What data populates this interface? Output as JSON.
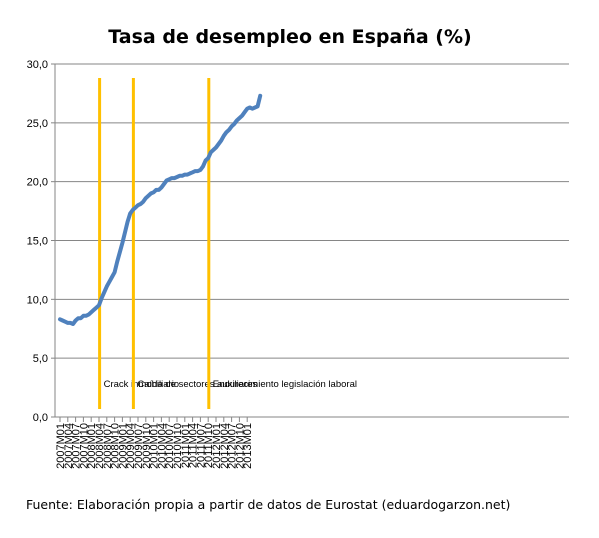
{
  "chart_data": {
    "type": "line",
    "title": "Tasa de desempleo en España (%)",
    "xlabel": "",
    "ylabel": "",
    "ylim": [
      0,
      30
    ],
    "yticks": [
      "0,0",
      "5,0",
      "10,0",
      "15,0",
      "20,0",
      "25,0",
      "30,0"
    ],
    "grid": "horizontal",
    "legend": "none",
    "line_color": "#4f81bd",
    "marker_color": "#ffc000",
    "x_labels": [
      "2007M01",
      "2007M04",
      "2007M07",
      "2007M10",
      "2008M01",
      "2008M04",
      "2008M07",
      "2008M10",
      "2009M01",
      "2009M04",
      "2009M07",
      "2009M10",
      "2010M01",
      "2010M04",
      "2010M07",
      "2010M10",
      "2011M01",
      "2011M04",
      "2011M07",
      "2011M10",
      "2012M01",
      "2012M04",
      "2012M07",
      "2012M10",
      "2013M01"
    ],
    "series": [
      {
        "values": [
          8.3,
          8.2,
          8.1,
          8.0,
          8.0,
          7.9,
          8.2,
          8.4,
          8.4,
          8.6,
          8.6,
          8.7,
          8.9,
          9.1,
          9.3,
          9.5,
          10.1,
          10.6,
          11.1,
          11.5,
          11.9,
          12.3,
          13.2,
          14.0,
          14.8,
          15.7,
          16.6,
          17.3,
          17.6,
          17.8,
          18.0,
          18.1,
          18.3,
          18.6,
          18.8,
          19.0,
          19.1,
          19.3,
          19.3,
          19.5,
          19.8,
          20.1,
          20.2,
          20.3,
          20.3,
          20.4,
          20.5,
          20.5,
          20.6,
          20.6,
          20.7,
          20.8,
          20.9,
          20.9,
          21.0,
          21.3,
          21.8,
          22.0,
          22.5,
          22.7,
          22.9,
          23.2,
          23.5,
          23.9,
          24.2,
          24.4,
          24.7,
          24.9,
          25.2,
          25.4,
          25.6,
          25.9,
          26.2,
          26.3,
          26.2,
          26.3,
          26.4,
          27.3
        ]
      }
    ],
    "annotations": [
      {
        "label": "Crack inmobiliario",
        "x_index": 16
      },
      {
        "label": "Caída de sectores auxiliares",
        "x_index": 29
      },
      {
        "label": "Endurecimiento legislación laboral",
        "x_index": 58
      }
    ]
  },
  "footer": {
    "source": "Fuente: Elaboración propia a partir de datos de Eurostat (eduardogarzon.net)"
  }
}
